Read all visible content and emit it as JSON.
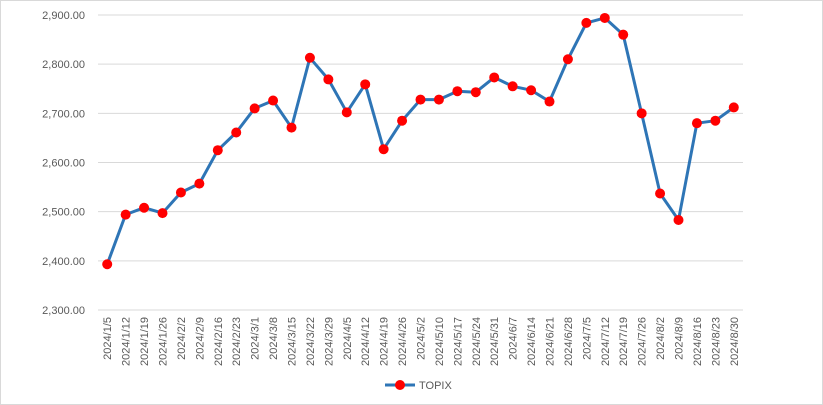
{
  "chart_data": {
    "type": "line",
    "title": "",
    "xlabel": "",
    "ylabel": "",
    "ylim": [
      2300,
      2900
    ],
    "y_ticks": [
      2300,
      2400,
      2500,
      2600,
      2700,
      2800,
      2900
    ],
    "y_tick_labels": [
      "2,300.00",
      "2,400.00",
      "2,500.00",
      "2,600.00",
      "2,700.00",
      "2,800.00",
      "2,900.00"
    ],
    "grid": "horizontal",
    "legend_position": "bottom",
    "x": [
      "2024/1/5",
      "2024/1/12",
      "2024/1/19",
      "2024/1/26",
      "2024/2/2",
      "2024/2/9",
      "2024/2/16",
      "2024/2/23",
      "2024/3/1",
      "2024/3/8",
      "2024/3/15",
      "2024/3/22",
      "2024/3/29",
      "2024/4/5",
      "2024/4/12",
      "2024/4/19",
      "2024/4/26",
      "2024/5/2",
      "2024/5/10",
      "2024/5/17",
      "2024/5/24",
      "2024/5/31",
      "2024/6/7",
      "2024/6/14",
      "2024/6/21",
      "2024/6/28",
      "2024/7/5",
      "2024/7/12",
      "2024/7/19",
      "2024/7/26",
      "2024/8/2",
      "2024/8/9",
      "2024/8/16",
      "2024/8/23",
      "2024/8/30"
    ],
    "series": [
      {
        "name": "TOPIX",
        "line_color": "#2e75b6",
        "marker_color": "#ff0000",
        "values": [
          2393,
          2494,
          2508,
          2497,
          2539,
          2557,
          2625,
          2661,
          2710,
          2726,
          2671,
          2813,
          2769,
          2702,
          2759,
          2627,
          2685,
          2728,
          2728,
          2745,
          2743,
          2773,
          2755,
          2747,
          2724,
          2810,
          2884,
          2894,
          2860,
          2700,
          2537,
          2483,
          2680,
          2685,
          2712
        ]
      }
    ]
  }
}
